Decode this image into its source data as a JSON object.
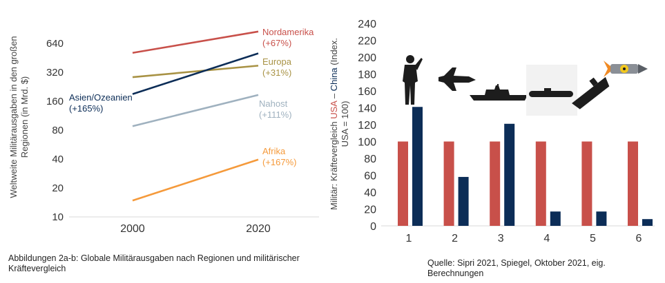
{
  "colors": {
    "usa": "#c8504a",
    "china": "#0c2d57",
    "nordamerika": "#c8504a",
    "europa": "#a89244",
    "asien": "#0c2d57",
    "nahost": "#9fb1bf",
    "afrika": "#f59a3b",
    "axis_text": "#444444",
    "grid": "#d9d9d9"
  },
  "chart_data": [
    {
      "type": "line",
      "ylabel": "Weltweite Militärausgaben in den großen Regionen (in Mrd. $)",
      "yscale": "log2",
      "ylim": [
        10,
        900
      ],
      "yticks": [
        "10",
        "20",
        "40",
        "80",
        "160",
        "320",
        "640"
      ],
      "x": [
        2000,
        2020
      ],
      "xticks": [
        "2000",
        "2020"
      ],
      "series": [
        {
          "name": "Nordamerika",
          "label2": "(+67%)",
          "values": [
            510,
            850
          ]
        },
        {
          "name": "Europa",
          "label2": "(+31%)",
          "values": [
            285,
            375
          ]
        },
        {
          "name": "Asien/Ozeanien",
          "label2": "(+165%)",
          "values": [
            190,
            504
          ]
        },
        {
          "name": "Nahost",
          "label2": "(+111%)",
          "values": [
            88,
            186
          ]
        },
        {
          "name": "Afrika",
          "label2": "(+167%)",
          "values": [
            14.8,
            39.5
          ]
        }
      ]
    },
    {
      "type": "bar",
      "ylabel_parts": [
        "Militär: Kräftevergleich ",
        "USA",
        " – ",
        "China",
        " (Index. USA = 100)"
      ],
      "ylim": [
        0,
        240
      ],
      "yticks": [
        "0",
        "20",
        "40",
        "60",
        "80",
        "100",
        "120",
        "140",
        "160",
        "180",
        "200",
        "220",
        "240"
      ],
      "categories": [
        "1",
        "2",
        "3",
        "4",
        "5",
        "6"
      ],
      "series": [
        {
          "values": [
            100,
            100,
            100,
            100,
            100,
            100
          ]
        },
        {
          "values": [
            141,
            58,
            121,
            17,
            17,
            8
          ]
        }
      ],
      "icons": [
        "soldier-icon",
        "fighter-jet-icon",
        "warship-icon",
        "submarine-icon",
        "aircraft-carrier-icon",
        "nuclear-missile-icon"
      ]
    }
  ],
  "captions": {
    "figure": "Abbildungen 2a-b: Globale Militärausgaben nach Regionen und militärischer Kräftevergleich",
    "source": "Quelle: Sipri 2021, Spiegel, Oktober 2021, eig. Berechnungen"
  }
}
